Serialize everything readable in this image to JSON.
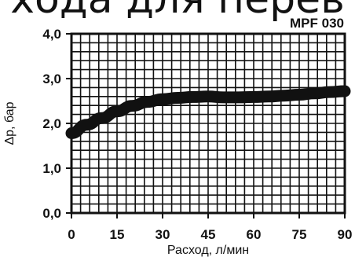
{
  "header": {
    "title_partial": "хода для перев",
    "model": "MPF 030"
  },
  "chart_data": {
    "type": "line",
    "xlabel": "Расход, л/мин",
    "ylabel": "Δp, бар",
    "xlim": [
      0,
      90
    ],
    "ylim": [
      0,
      4
    ],
    "x_ticks": [
      "0",
      "15",
      "30",
      "45",
      "60",
      "75",
      "90"
    ],
    "y_ticks": [
      "0,0",
      "1,0",
      "2,0",
      "3,0",
      "4,0"
    ],
    "grid": true,
    "x": [
      0,
      5,
      10,
      15,
      20,
      25,
      30,
      35,
      40,
      45,
      50,
      55,
      60,
      65,
      70,
      75,
      80,
      85,
      90
    ],
    "series": [
      {
        "values": [
          1.78,
          1.97,
          2.12,
          2.27,
          2.39,
          2.48,
          2.54,
          2.57,
          2.59,
          2.6,
          2.58,
          2.58,
          2.59,
          2.6,
          2.62,
          2.64,
          2.67,
          2.7,
          2.72
        ]
      }
    ],
    "colors": {
      "line": "#111111",
      "grid": "#111111",
      "background": "#ffffff"
    }
  }
}
